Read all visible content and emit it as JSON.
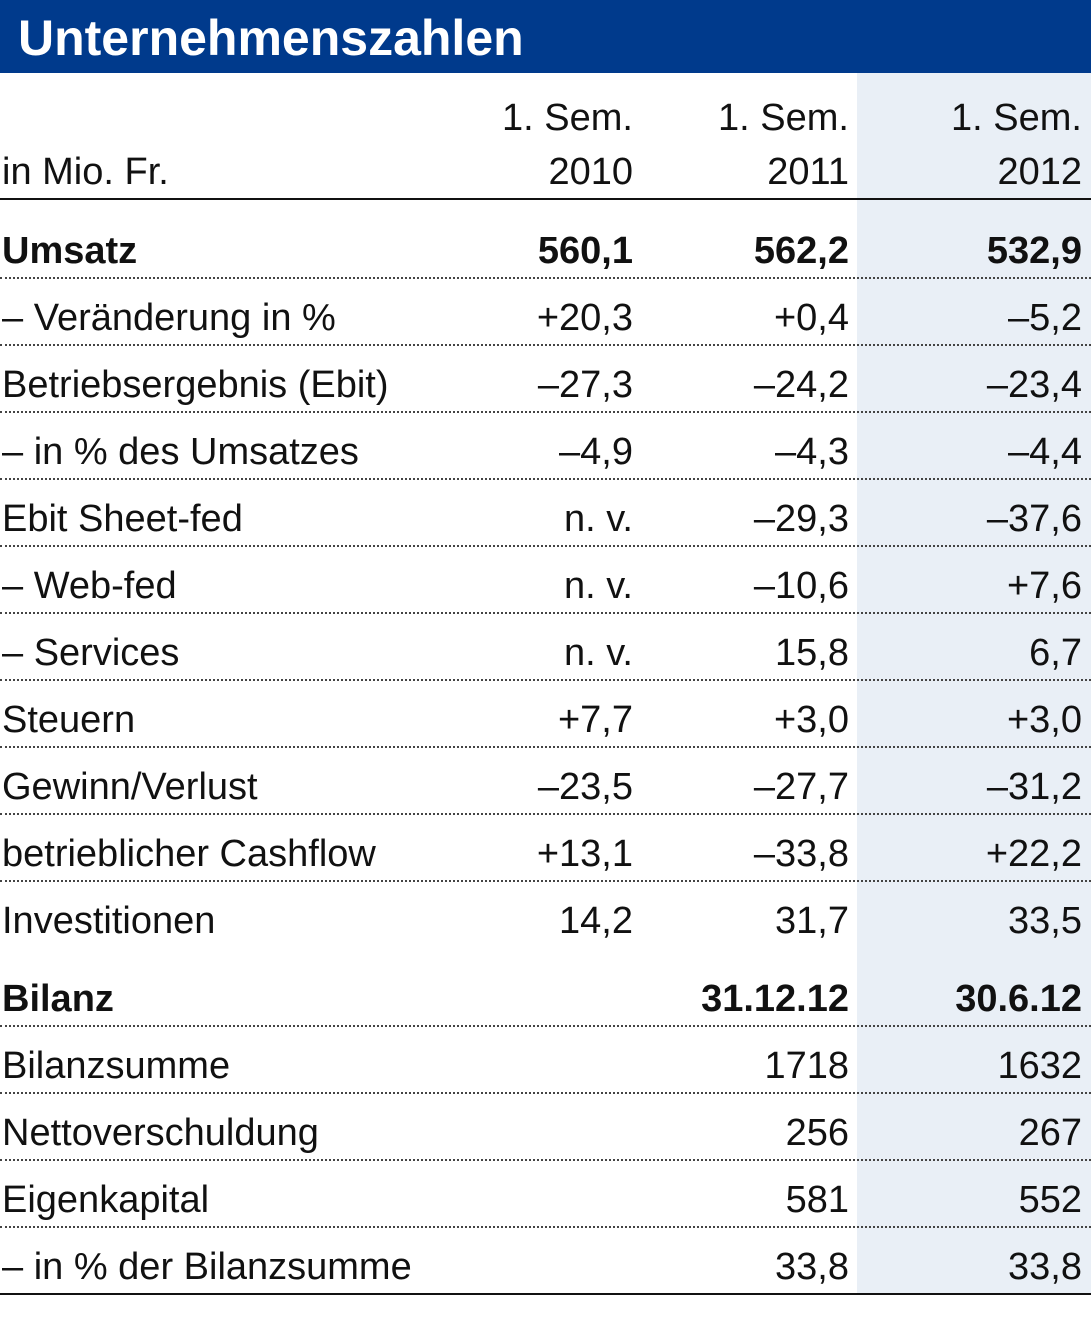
{
  "title": "Unternehmenszahlen",
  "colors": {
    "title_bar": "#003a8c",
    "title_text": "#ffffff",
    "highlight_column": "#e9eff6"
  },
  "header": {
    "unit": "in Mio. Fr.",
    "columns": [
      {
        "line1": "1. Sem.",
        "line2": "2010"
      },
      {
        "line1": "1. Sem.",
        "line2": "2011"
      },
      {
        "line1": "1. Sem.",
        "line2": "2012"
      }
    ]
  },
  "rows": [
    {
      "label": "Umsatz",
      "values": [
        "560,1",
        "562,2",
        "532,9"
      ]
    },
    {
      "label": "– Veränderung in %",
      "values": [
        "+20,3",
        "+0,4",
        "–5,2"
      ]
    },
    {
      "label": "Betriebsergebnis (Ebit)",
      "values": [
        "–27,3",
        "–24,2",
        "–23,4"
      ]
    },
    {
      "label": "– in % des Umsatzes",
      "values": [
        "–4,9",
        "–4,3",
        "–4,4"
      ]
    },
    {
      "label": "Ebit Sheet-fed",
      "values": [
        "n. v.",
        "–29,3",
        "–37,6"
      ]
    },
    {
      "label": "– Web-fed",
      "values": [
        "n. v.",
        "–10,6",
        "+7,6"
      ]
    },
    {
      "label": "– Services",
      "values": [
        "n. v.",
        "15,8",
        "6,7"
      ]
    },
    {
      "label": "Steuern",
      "values": [
        "+7,7",
        "+3,0",
        "+3,0"
      ]
    },
    {
      "label": "Gewinn/Verlust",
      "values": [
        "–23,5",
        "–27,7",
        "–31,2"
      ]
    },
    {
      "label": "betrieblicher Cashflow",
      "values": [
        "+13,1",
        "–33,8",
        "+22,2"
      ]
    },
    {
      "label": "Investitionen",
      "values": [
        "14,2",
        "31,7",
        "33,5"
      ]
    }
  ],
  "bilanz": {
    "label": "Bilanz",
    "dates": [
      "31.12.12",
      "30.6.12"
    ],
    "rows": [
      {
        "label": "Bilanzsumme",
        "values": [
          "1718",
          "1632"
        ]
      },
      {
        "label": "Nettoverschuldung",
        "values": [
          "256",
          "267"
        ]
      },
      {
        "label": "Eigenkapital",
        "values": [
          "581",
          "552"
        ]
      },
      {
        "label": "– in % der Bilanzsumme",
        "values": [
          "33,8",
          "33,8"
        ]
      }
    ]
  }
}
